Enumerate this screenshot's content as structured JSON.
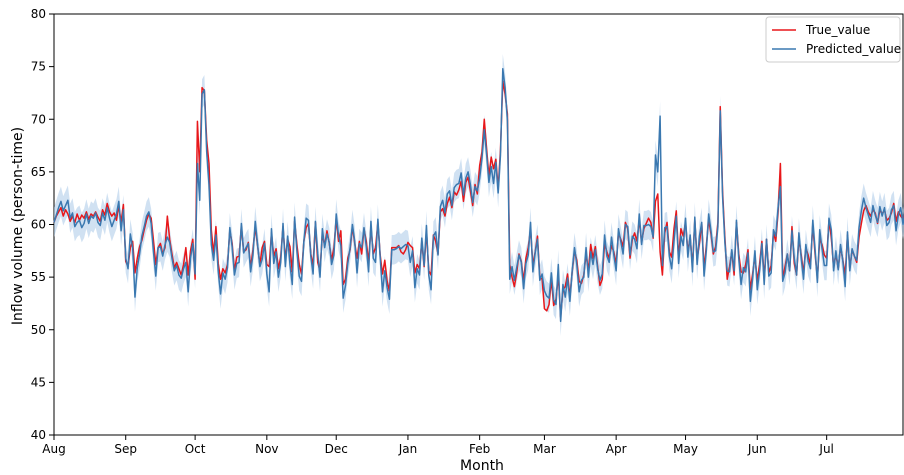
{
  "chart_data": {
    "type": "line",
    "xlabel": "Month",
    "ylabel": "Inflow volume (person-time)",
    "ylim": [
      40,
      80
    ],
    "y_ticks": [
      40,
      45,
      50,
      55,
      60,
      65,
      70,
      75,
      80
    ],
    "x_ticks": [
      {
        "label": "Aug",
        "day": 0
      },
      {
        "label": "Sep",
        "day": 31
      },
      {
        "label": "Oct",
        "day": 61
      },
      {
        "label": "Nov",
        "day": 92
      },
      {
        "label": "Dec",
        "day": 122
      },
      {
        "label": "Jan",
        "day": 153
      },
      {
        "label": "Feb",
        "day": 184
      },
      {
        "label": "Mar",
        "day": 212
      },
      {
        "label": "Apr",
        "day": 243
      },
      {
        "label": "May",
        "day": 273
      },
      {
        "label": "Jun",
        "day": 304
      },
      {
        "label": "Jul",
        "day": 334
      }
    ],
    "x_max_day": 367,
    "grid": false,
    "legend": {
      "position": "top-right"
    },
    "band_width": 1.4,
    "series": [
      {
        "name": "True_value",
        "color": "#e8171a",
        "values": [
          60.2,
          60.8,
          61.2,
          61.6,
          60.8,
          61.4,
          61.0,
          60.3,
          60.8,
          60.2,
          61.0,
          60.4,
          60.9,
          60.6,
          61.2,
          60.5,
          61.0,
          60.8,
          61.2,
          60.7,
          60.3,
          61.4,
          60.9,
          62.0,
          61.2,
          60.8,
          61.1,
          60.4,
          61.8,
          60.2,
          61.9,
          56.5,
          56.0,
          57.8,
          58.4,
          55.4,
          56.8,
          57.9,
          58.5,
          59.5,
          60.4,
          61.0,
          60.6,
          58.5,
          56.2,
          57.8,
          58.2,
          57.2,
          57.8,
          60.8,
          58.6,
          57.2,
          55.9,
          56.4,
          55.8,
          55.2,
          56.2,
          57.8,
          55.2,
          57.5,
          58.6,
          54.8,
          69.8,
          65.0,
          73.0,
          72.7,
          68.0,
          65.8,
          59.5,
          57.2,
          59.8,
          56.3,
          54.8,
          55.8,
          55.4,
          56.2,
          59.4,
          58.2,
          55.6,
          56.9,
          57.0,
          59.8,
          57.4,
          57.6,
          58.3,
          55.9,
          57.6,
          59.8,
          58.0,
          56.2,
          57.8,
          58.4,
          56.2,
          56.0,
          59.2,
          57.0,
          57.7,
          55.8,
          56.9,
          59.8,
          56.6,
          58.6,
          57.9,
          55.5,
          60.3,
          58.1,
          56.2,
          55.3,
          58.4,
          59.7,
          60.1,
          57.2,
          56.1,
          60.2,
          56.4,
          55.6,
          59.1,
          58.0,
          59.4,
          58.2,
          56.6,
          57.8,
          60.6,
          58.4,
          59.4,
          54.3,
          54.8,
          56.8,
          57.6,
          59.8,
          58.2,
          56.8,
          58.4,
          57.2,
          59.6,
          58.4,
          56.4,
          59.8,
          57.2,
          57.8,
          60.2,
          57.1,
          55.3,
          56.6,
          54.6,
          53.7,
          57.8,
          57.8,
          57.8,
          58.0,
          57.4,
          57.2,
          57.6,
          58.3,
          58.0,
          57.8,
          55.4,
          56.2,
          55.8,
          58.4,
          56.0,
          59.4,
          55.6,
          55.2,
          59.0,
          58.4,
          57.2,
          61.2,
          61.5,
          60.8,
          62.0,
          62.6,
          61.6,
          63.1,
          62.8,
          63.3,
          64.1,
          62.2,
          64.0,
          64.5,
          63.2,
          61.8,
          63.8,
          62.9,
          65.6,
          66.9,
          70.0,
          67.2,
          64.6,
          66.4,
          65.3,
          66.2,
          63.4,
          67.1,
          73.6,
          72.4,
          70.5,
          56.2,
          55.0,
          54.1,
          55.4,
          57.2,
          56.5,
          54.6,
          56.8,
          57.8,
          59.6,
          56.1,
          57.4,
          58.9,
          55.0,
          54.8,
          52.0,
          51.8,
          52.4,
          54.8,
          52.3,
          52.9,
          55.2,
          51.2,
          53.8,
          54.1,
          55.3,
          53.1,
          55.5,
          57.5,
          56.6,
          54.6,
          54.4,
          55.2,
          57.2,
          55.6,
          58.1,
          56.8,
          57.9,
          56.0,
          54.2,
          54.8,
          58.2,
          57.4,
          56.8,
          58.0,
          57.4,
          56.2,
          59.2,
          58.6,
          57.9,
          60.2,
          59.6,
          56.8,
          58.6,
          59.2,
          58.4,
          60.5,
          58.3,
          59.6,
          60.1,
          60.6,
          60.2,
          58.7,
          62.2,
          62.9,
          57.4,
          55.2,
          59.2,
          60.2,
          57.4,
          56.9,
          59.6,
          61.3,
          56.8,
          59.6,
          58.9,
          60.2,
          57.4,
          58.8,
          56.0,
          60.4,
          56.7,
          58.2,
          60.1,
          55.8,
          58.0,
          60.5,
          59.1,
          57.2,
          57.9,
          60.2,
          71.2,
          63.2,
          58.8,
          54.8,
          56.0,
          57.4,
          55.2,
          60.2,
          57.2,
          55.5,
          55.4,
          56.2,
          57.6,
          53.8,
          55.3,
          57.0,
          54.6,
          56.2,
          58.4,
          54.8,
          58.6,
          55.4,
          56.1,
          59.2,
          58.4,
          61.2,
          65.8,
          54.8,
          56.0,
          57.2,
          55.6,
          59.8,
          56.3,
          55.2,
          58.7,
          57.1,
          55.4,
          57.8,
          57.1,
          56.2,
          60.0,
          57.2,
          54.9,
          58.6,
          58.1,
          57.1,
          56.8,
          60.4,
          58.8,
          55.9,
          57.2,
          55.8,
          57.9,
          56.6,
          55.2,
          59.0,
          55.8,
          57.6,
          57.0,
          56.4,
          58.8,
          60.1,
          61.3,
          61.8,
          61.2,
          60.8,
          61.4,
          61.1,
          60.1,
          61.4,
          61.0,
          61.4,
          60.4,
          60.6,
          61.1,
          62.0,
          60.3,
          61.2,
          60.8,
          60.5,
          61.2,
          60.1,
          60.6,
          61.0,
          61.4,
          60.4,
          61.3,
          60.8,
          60.9
        ]
      },
      {
        "name": "Predicted_value",
        "color": "#3a78b0",
        "values": [
          60.2,
          60.9,
          61.6,
          62.2,
          61.3,
          61.8,
          62.3,
          60.6,
          61.1,
          59.8,
          60.2,
          60.4,
          59.7,
          60.1,
          61.0,
          60.1,
          60.8,
          60.6,
          61.1,
          60.2,
          59.9,
          61.1,
          60.4,
          61.6,
          60.6,
          59.8,
          60.4,
          61.0,
          62.2,
          59.4,
          61.4,
          56.8,
          55.8,
          59.1,
          57.8,
          53.1,
          55.9,
          57.2,
          58.9,
          59.8,
          60.8,
          61.2,
          60.1,
          57.4,
          55.1,
          57.8,
          57.9,
          57.0,
          58.1,
          58.8,
          58.3,
          56.8,
          55.6,
          56.1,
          55.2,
          54.9,
          55.8,
          56.4,
          53.6,
          56.8,
          58.2,
          55.3,
          65.8,
          62.3,
          72.4,
          72.8,
          66.9,
          63.8,
          58.1,
          56.6,
          59.0,
          55.5,
          53.4,
          55.4,
          54.8,
          55.9,
          59.7,
          57.9,
          55.2,
          56.3,
          56.4,
          60.1,
          57.3,
          57.8,
          58.2,
          55.5,
          57.1,
          60.3,
          58.1,
          56.0,
          56.7,
          58.2,
          55.3,
          53.6,
          59.6,
          56.3,
          57.4,
          55.0,
          56.4,
          60.1,
          56.0,
          58.9,
          56.2,
          54.3,
          60.7,
          57.5,
          55.1,
          54.6,
          58.4,
          60.6,
          60.4,
          57.0,
          55.3,
          60.3,
          57.2,
          55.0,
          59.6,
          57.8,
          59.1,
          58.3,
          56.2,
          57.1,
          61.0,
          58.9,
          58.0,
          53.0,
          54.2,
          56.3,
          57.8,
          60.0,
          58.4,
          55.4,
          58.2,
          57.8,
          59.7,
          57.9,
          55.5,
          60.3,
          56.8,
          56.4,
          60.5,
          56.9,
          53.6,
          55.6,
          54.0,
          52.9,
          57.6,
          57.6,
          57.7,
          57.9,
          57.7,
          57.9,
          58.1,
          58.0,
          56.4,
          57.5,
          54.0,
          55.8,
          55.2,
          58.7,
          56.1,
          59.9,
          55.2,
          53.8,
          58.9,
          59.3,
          57.1,
          61.7,
          62.3,
          61.1,
          62.9,
          63.2,
          61.8,
          63.5,
          63.8,
          63.9,
          64.9,
          62.8,
          64.4,
          65.0,
          63.8,
          62.1,
          63.6,
          63.2,
          64.4,
          66.3,
          69.0,
          66.7,
          64.0,
          65.5,
          63.9,
          65.9,
          63.0,
          66.6,
          74.8,
          73.0,
          69.9,
          54.8,
          56.0,
          54.7,
          55.9,
          57.1,
          56.4,
          53.9,
          56.3,
          57.1,
          60.2,
          55.5,
          57.3,
          58.6,
          54.7,
          55.3,
          53.7,
          53.2,
          53.0,
          55.4,
          52.8,
          52.4,
          56.2,
          50.8,
          54.3,
          53.1,
          54.9,
          52.7,
          55.6,
          57.8,
          56.2,
          53.6,
          54.7,
          55.0,
          57.8,
          55.0,
          57.4,
          56.2,
          57.6,
          55.8,
          54.7,
          55.3,
          59.0,
          57.0,
          56.4,
          58.8,
          57.1,
          55.6,
          59.6,
          58.4,
          57.2,
          60.0,
          59.8,
          57.1,
          58.9,
          58.6,
          57.7,
          61.0,
          58.1,
          59.9,
          59.9,
          60.0,
          59.8,
          58.8,
          66.6,
          65.0,
          70.3,
          56.1,
          59.7,
          59.8,
          57.0,
          55.8,
          58.4,
          60.8,
          56.3,
          58.9,
          58.0,
          60.6,
          56.9,
          59.0,
          55.5,
          60.7,
          56.2,
          58.9,
          60.2,
          55.1,
          57.6,
          61.0,
          59.4,
          57.4,
          57.5,
          59.8,
          70.8,
          62.7,
          58.3,
          55.6,
          55.5,
          57.6,
          55.6,
          60.4,
          56.8,
          54.3,
          55.9,
          55.5,
          57.3,
          52.7,
          54.9,
          57.5,
          53.8,
          55.6,
          58.2,
          54.3,
          58.6,
          55.1,
          55.4,
          59.5,
          58.9,
          61.6,
          63.6,
          54.6,
          55.4,
          57.2,
          55.6,
          59.4,
          56.8,
          55.2,
          59.2,
          56.8,
          54.8,
          58.1,
          56.5,
          55.8,
          60.4,
          57.6,
          54.5,
          59.5,
          57.7,
          56.1,
          56.1,
          60.6,
          59.5,
          55.6,
          57.5,
          55.7,
          58.1,
          56.5,
          54.1,
          59.3,
          55.6,
          57.7,
          57.0,
          56.6,
          59.7,
          61.3,
          62.5,
          61.6,
          60.9,
          60.2,
          61.8,
          60.9,
          60.2,
          61.7,
          60.8,
          61.6,
          59.9,
          60.2,
          61.4,
          61.8,
          59.4,
          60.9,
          61.6,
          60.0,
          61.6,
          60.2,
          60.4,
          61.3,
          61.8,
          60.1,
          61.6,
          60.5,
          59.4
        ]
      }
    ]
  }
}
